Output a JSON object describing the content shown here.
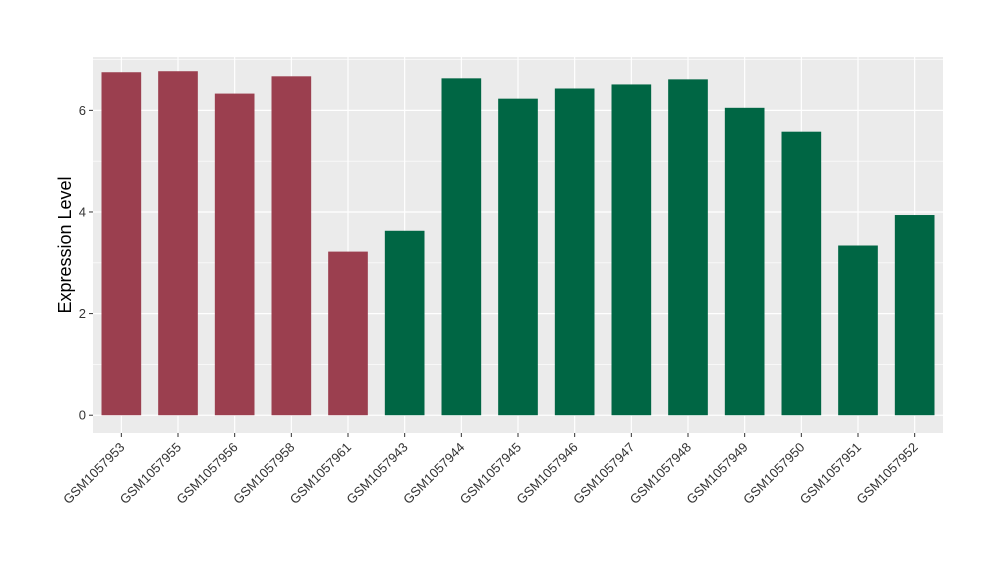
{
  "chart_data": {
    "type": "bar",
    "title": "",
    "xlabel": "",
    "ylabel": "Expression Level",
    "ylim": [
      -0.35,
      7.05
    ],
    "yticks": [
      0,
      2,
      4,
      6
    ],
    "grid": true,
    "legend": "none",
    "categories": [
      "GSM1057953",
      "GSM1057955",
      "GSM1057956",
      "GSM1057958",
      "GSM1057961",
      "GSM1057943",
      "GSM1057944",
      "GSM1057945",
      "GSM1057946",
      "GSM1057947",
      "GSM1057948",
      "GSM1057949",
      "GSM1057950",
      "GSM1057951",
      "GSM1057952"
    ],
    "values": [
      6.75,
      6.77,
      6.33,
      6.67,
      3.22,
      3.63,
      6.63,
      6.23,
      6.43,
      6.51,
      6.61,
      6.05,
      5.58,
      3.34,
      3.94
    ],
    "bar_colors": [
      "#9b3f4f",
      "#9b3f4f",
      "#9b3f4f",
      "#9b3f4f",
      "#9b3f4f",
      "#006644",
      "#006644",
      "#006644",
      "#006644",
      "#006644",
      "#006644",
      "#006644",
      "#006644",
      "#006644",
      "#006644"
    ],
    "colors": {
      "panel_background": "#ebebeb",
      "grid": "#ffffff",
      "group_a": "#9b3f4f",
      "group_b": "#006644"
    }
  }
}
